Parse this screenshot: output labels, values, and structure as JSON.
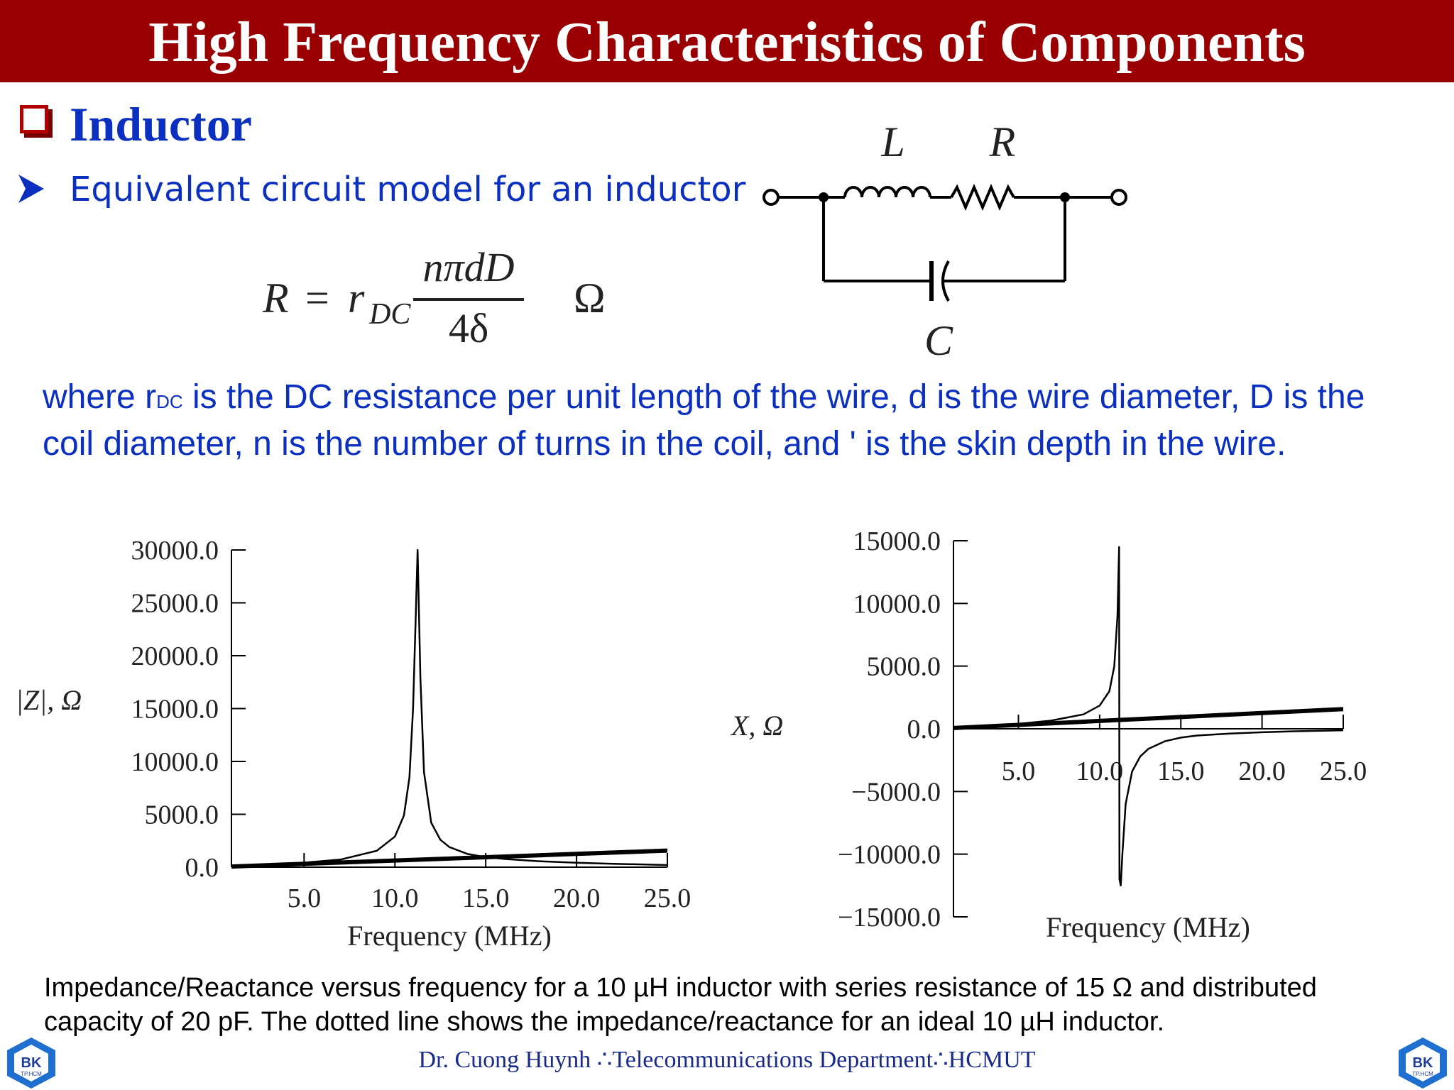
{
  "header": {
    "title": "High Frequency Characteristics of Components"
  },
  "section": {
    "title": "Inductor"
  },
  "bullet": {
    "text": "Equivalent circuit model for an inductor"
  },
  "formula": {
    "lhs": "R",
    "eq": "=",
    "coef": "r",
    "coef_sub": "DC",
    "numerator": "nπdD",
    "denominator": "4δ",
    "unit": "Ω"
  },
  "circuit": {
    "label_L": "L",
    "label_R": "R",
    "label_C": "C"
  },
  "explanation": {
    "prefix": "where r",
    "sub": "DC",
    "rest": " is the DC resistance per unit length of the wire, d is the wire diameter, D is the coil diameter, n is the number of turns in the coil, and ' is the skin depth in the wire."
  },
  "chart_data": [
    {
      "type": "line",
      "title": "",
      "xlabel": "Frequency (MHz)",
      "ylabel": "|Z|, Ω",
      "xlim": [
        1.0,
        25.0
      ],
      "ylim": [
        0.0,
        30000.0
      ],
      "xticks": [
        "5.0",
        "10.0",
        "15.0",
        "20.0",
        "25.0"
      ],
      "xtick_values": [
        5,
        10,
        15,
        20,
        25
      ],
      "yticks": [
        "30000.0",
        "25000.0",
        "20000.0",
        "15000.0",
        "10000.0",
        "5000.0",
        "0.0"
      ],
      "ytick_values": [
        30000,
        25000,
        20000,
        15000,
        10000,
        5000,
        0
      ],
      "grid": false,
      "series": [
        {
          "style": "solid",
          "x": [
            1,
            3,
            5,
            7,
            9,
            10,
            10.5,
            10.8,
            11.0,
            11.15,
            11.25,
            11.4,
            11.6,
            12.0,
            12.5,
            13,
            14,
            15,
            16,
            18,
            20,
            22,
            25
          ],
          "y": [
            65,
            220,
            430,
            720,
            1550,
            2900,
            4900,
            8500,
            15000,
            24000,
            30000,
            18000,
            9000,
            4200,
            2600,
            1900,
            1250,
            950,
            780,
            560,
            420,
            320,
            200
          ]
        },
        {
          "style": "dotted",
          "x": [
            1,
            5,
            10,
            15,
            20,
            25
          ],
          "y": [
            63,
            314,
            628,
            942,
            1257,
            1571
          ]
        }
      ]
    },
    {
      "type": "line",
      "title": "",
      "xlabel": "Frequency (MHz)",
      "ylabel": "X, Ω",
      "xlim": [
        1.0,
        25.0
      ],
      "ylim": [
        -15000.0,
        15000.0
      ],
      "xticks": [
        "5.0",
        "10.0",
        "15.0",
        "20.0",
        "25.0"
      ],
      "xtick_values": [
        5,
        10,
        15,
        20,
        25
      ],
      "yticks": [
        "15000.0",
        "10000.0",
        "5000.0",
        "0.0",
        "−5000.0",
        "−10000.0",
        "−15000.0"
      ],
      "ytick_values": [
        15000,
        10000,
        5000,
        0,
        -5000,
        -10000,
        -15000
      ],
      "grid": false,
      "series": [
        {
          "style": "solid",
          "x": [
            1,
            4,
            7,
            9,
            10,
            10.6,
            10.9,
            11.1,
            11.2,
            11.22,
            11.3,
            11.4,
            11.6,
            12.0,
            12.5,
            13,
            14,
            15,
            16,
            18,
            20,
            22,
            25
          ],
          "y": [
            65,
            270,
            650,
            1150,
            1850,
            3000,
            5000,
            9000,
            14500,
            -12000,
            -12500,
            -10000,
            -6000,
            -3400,
            -2200,
            -1600,
            -1000,
            -700,
            -540,
            -380,
            -280,
            -200,
            -120
          ]
        },
        {
          "style": "dotted",
          "x": [
            1,
            5,
            10,
            15,
            20,
            25
          ],
          "y": [
            63,
            314,
            628,
            942,
            1257,
            1571
          ]
        }
      ]
    }
  ],
  "caption": {
    "line1": "Impedance/Reactance versus frequency for a 10 µH inductor with series resistance of 15 Ω and distributed",
    "line2": "capacity of 20 pF. The dotted line shows the impedance/reactance for an ideal 10 µH inductor."
  },
  "footer": {
    "text": "Dr. Cuong Huynh ∴Telecommunications Department∴HCMUT"
  },
  "logo": {
    "text": "BK",
    "subtext": "TP.HCM"
  },
  "colors": {
    "title_bar": "#9a0002",
    "accent_blue": "#0b2fbf",
    "footer_text": "#1a2a8a"
  }
}
